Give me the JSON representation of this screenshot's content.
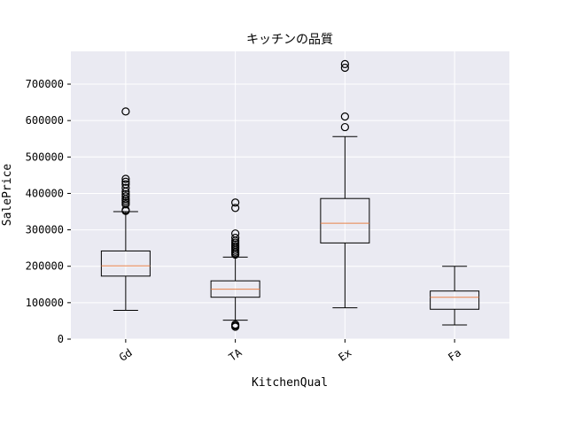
{
  "chart_data": {
    "type": "box",
    "title": "キッチンの品質",
    "xlabel": "KitchenQual",
    "ylabel": "SalePrice",
    "ylim": [
      0,
      790000
    ],
    "yticks": [
      0,
      100000,
      200000,
      300000,
      400000,
      500000,
      600000,
      700000
    ],
    "ytick_labels": [
      "0",
      "100000",
      "200000",
      "300000",
      "400000",
      "500000",
      "600000",
      "700000"
    ],
    "grid": true,
    "background": "#eaeaf2",
    "median_color": "#e8824a",
    "categories": [
      "Gd",
      "TA",
      "Ex",
      "Fa"
    ],
    "boxes": [
      {
        "category": "Gd",
        "whisker_low": 79000,
        "q1": 173000,
        "median": 201000,
        "q3": 242000,
        "whisker_high": 350000,
        "outliers": [
          352000,
          355000,
          370000,
          375000,
          380000,
          385000,
          392000,
          398000,
          405000,
          415000,
          425000,
          432000,
          440000,
          625000
        ]
      },
      {
        "category": "TA",
        "whisker_low": 52000,
        "q1": 115000,
        "median": 137000,
        "q3": 160000,
        "whisker_high": 225000,
        "outliers": [
          34000,
          37000,
          40000,
          232000,
          236000,
          240000,
          245000,
          250000,
          255000,
          260000,
          265000,
          270000,
          278000,
          290000,
          360000,
          375000
        ]
      },
      {
        "category": "Ex",
        "whisker_low": 86000,
        "q1": 264000,
        "median": 318000,
        "q3": 386000,
        "whisker_high": 556000,
        "outliers": [
          582000,
          611000,
          745000,
          755000
        ]
      },
      {
        "category": "Fa",
        "whisker_low": 39000,
        "q1": 82000,
        "median": 115000,
        "q3": 132000,
        "whisker_high": 200000,
        "outliers": []
      }
    ]
  }
}
